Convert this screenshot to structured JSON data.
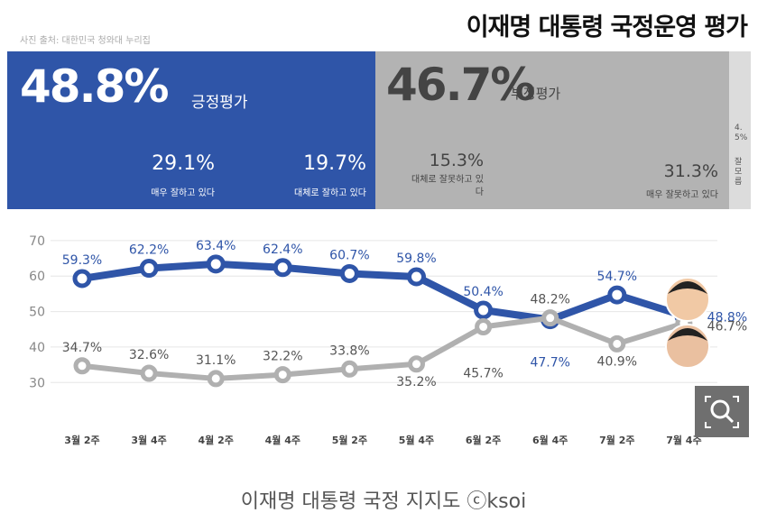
{
  "header": {
    "title": "이재명 대통령 국정운영 평가",
    "source": "사진 출처: 대한민국 청와대 누리집"
  },
  "summary": {
    "positive": {
      "total": "48.8%",
      "label": "긍정평가",
      "parts": [
        {
          "value": "29.1%",
          "label": "매우 잘하고 있다"
        },
        {
          "value": "19.7%",
          "label": "대체로 잘하고 있다"
        }
      ]
    },
    "negative": {
      "total": "46.7%",
      "label": "부정평가",
      "parts": [
        {
          "value": "15.3%",
          "label": "대체로 잘못하고 있다"
        },
        {
          "value": "31.3%",
          "label": "매우 잘못하고 있다"
        }
      ]
    },
    "unknown": {
      "value": "4.5%",
      "label": "잘 모름"
    }
  },
  "chart_data": {
    "type": "line",
    "categories": [
      "3월 2주",
      "3월 4주",
      "4월 2주",
      "4월 4주",
      "5월 2주",
      "5월 4주",
      "6월 2주",
      "6월 4주",
      "7월 2주",
      "7월 4주"
    ],
    "series": [
      {
        "color": "#2f55a8",
        "values": [
          59.3,
          62.2,
          63.4,
          62.4,
          60.7,
          59.8,
          50.4,
          47.7,
          54.7,
          48.8
        ],
        "value_labels": [
          "59.3%",
          "62.2%",
          "63.4%",
          "62.4%",
          "60.7%",
          "59.8%",
          "50.4%",
          "47.7%",
          "54.7%",
          "48.8%"
        ]
      },
      {
        "color": "#b0b0b0",
        "values": [
          34.7,
          32.6,
          31.1,
          32.2,
          33.8,
          35.2,
          45.7,
          48.2,
          40.9,
          46.7
        ],
        "value_labels": [
          "34.7%",
          "32.6%",
          "31.1%",
          "32.2%",
          "33.8%",
          "35.2%",
          "45.7%",
          "48.2%",
          "40.9%",
          "46.7%"
        ]
      }
    ],
    "ylim": [
      26,
      72
    ],
    "yticks": [
      30,
      40,
      50,
      60,
      70
    ],
    "grid": true
  },
  "caption": "이재명 대통령 국정 지지도 ⓒksoi"
}
